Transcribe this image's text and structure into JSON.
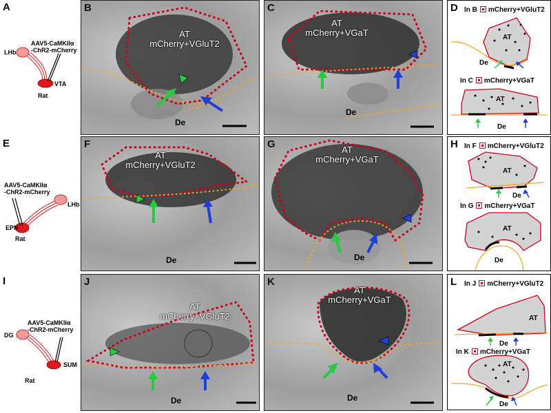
{
  "panels": {
    "A": {
      "letter": "A",
      "virus_line1": "AAV5-CaMKIIα",
      "virus_line2": "-ChR2-mCherry",
      "target": "LHb",
      "source": "VTA",
      "species": "Rat"
    },
    "B": {
      "letter": "B",
      "label_line1": "AT",
      "label_line2": "mCherry+VGluT2",
      "de": "De"
    },
    "C": {
      "letter": "C",
      "label_line1": "AT",
      "label_line2": "mCherry+VGaT",
      "de": "De"
    },
    "D": {
      "letter": "D",
      "top_key": "In B",
      "top_marker": "mCherry+VGluT2",
      "top_at": "AT",
      "top_de": "De",
      "bottom_key": "In C",
      "bottom_marker": "mCherry+VGaT",
      "bottom_at": "AT",
      "bottom_de": "De"
    },
    "E": {
      "letter": "E",
      "virus_line1": "AAV5-CaMKIIα",
      "virus_line2": "-ChR2-mCherry",
      "target": "LHb",
      "source": "EPN",
      "species": "Rat"
    },
    "F": {
      "letter": "F",
      "label_line1": "AT",
      "label_line2": "mCherry+VGluT2",
      "de": "De"
    },
    "G": {
      "letter": "G",
      "label_line1": "AT",
      "label_line2": "mCherry+VGaT",
      "de": "De"
    },
    "H": {
      "letter": "H",
      "top_key": "In F",
      "top_marker": "mCherry+VGluT2",
      "top_at": "AT",
      "top_de": "De",
      "bottom_key": "In G",
      "bottom_marker": "mCherry+VGaT",
      "bottom_at": "AT",
      "bottom_de": "De"
    },
    "I": {
      "letter": "I",
      "virus_line1": "AAV5-CaMKIIα",
      "virus_line2": "-ChR2-mCherry",
      "target": "DG",
      "source": "SUM",
      "species": "Rat"
    },
    "J": {
      "letter": "J",
      "label_line1": "AT",
      "label_line2": "mCherry+VGluT2",
      "de": "De"
    },
    "K": {
      "letter": "K",
      "label_line1": "AT",
      "label_line2": "mCherry+VGaT",
      "de": "De"
    },
    "L": {
      "letter": "L",
      "top_key": "In J",
      "top_marker": "mCherry+VGluT2",
      "top_at": "AT",
      "top_de": "De",
      "bottom_key": "In K",
      "bottom_marker": "mCherry+VGaT",
      "bottom_at": "AT",
      "bottom_de": "De"
    }
  },
  "colors": {
    "outline_red": "#d0021b",
    "outline_orange": "#f5a623",
    "arrow_green": "#27c93f",
    "arrow_blue": "#1f3fd6",
    "cartoon_red": "#e01818",
    "cartoon_pink": "#f29b9b"
  }
}
